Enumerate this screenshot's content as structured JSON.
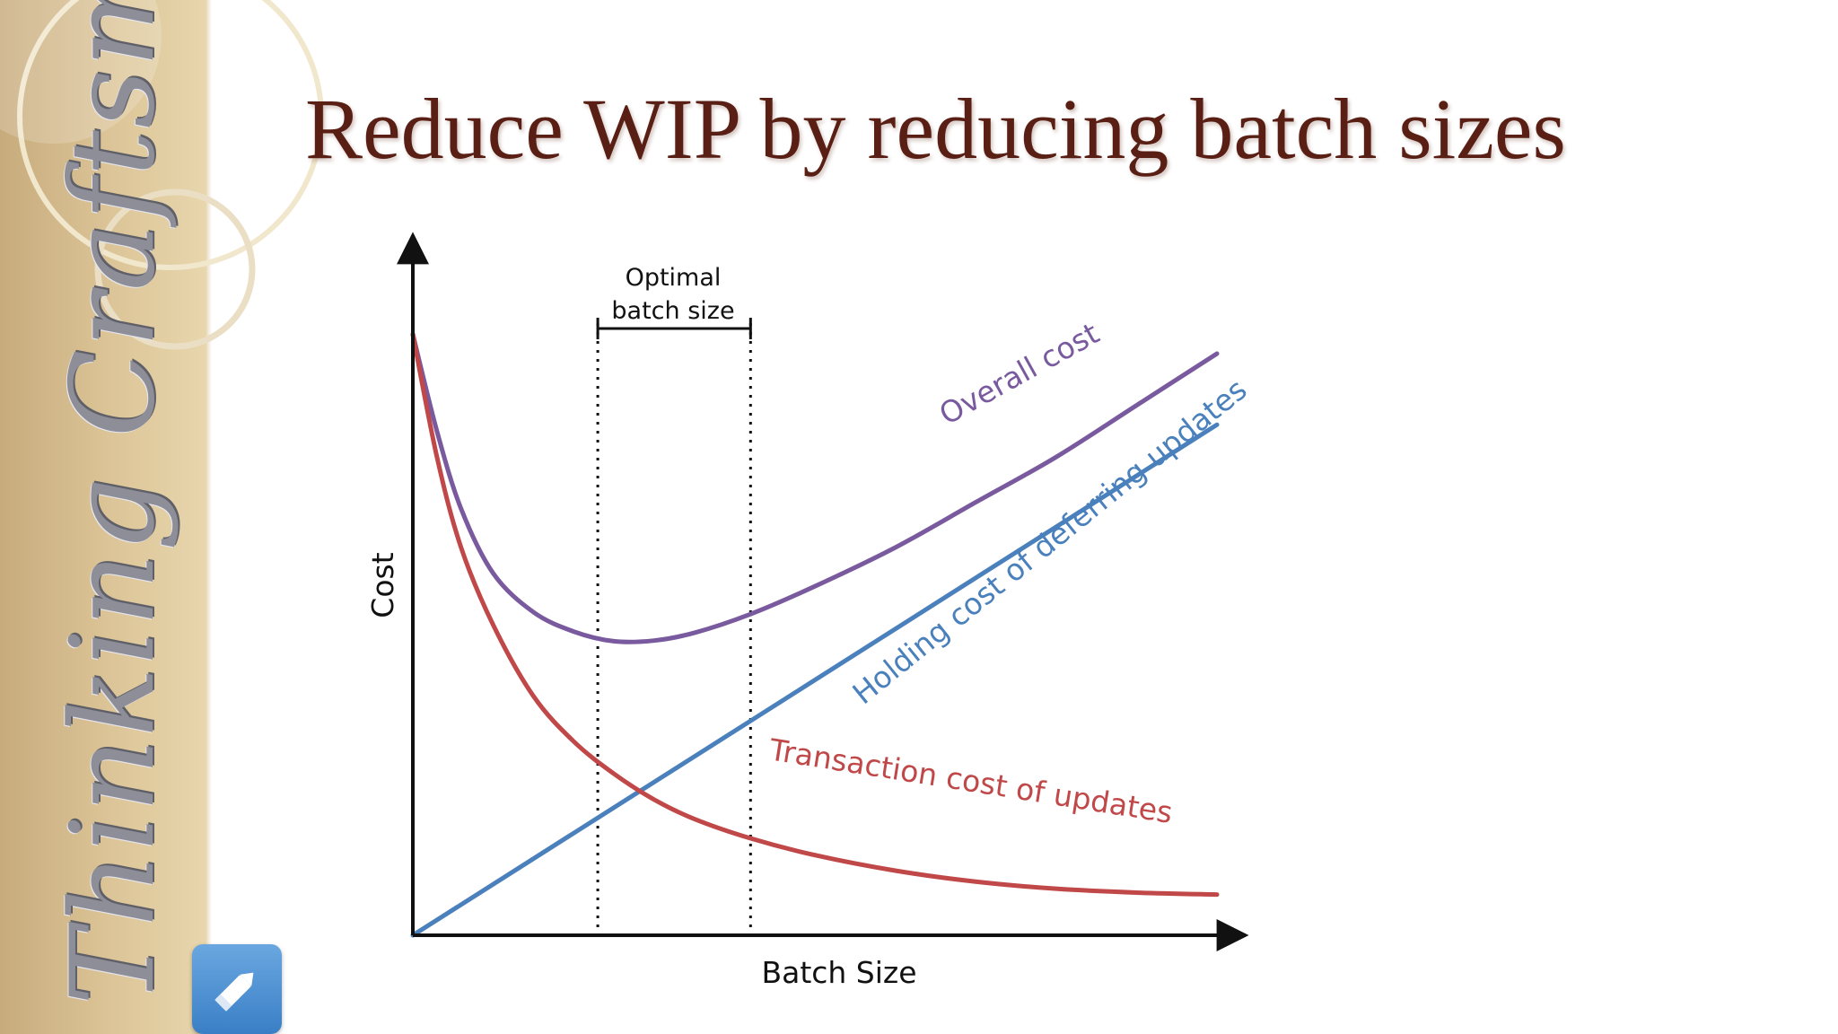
{
  "sidebar": {
    "brand_text": "Thinking Craftsman"
  },
  "slide": {
    "title": "Reduce WIP by reducing batch sizes"
  },
  "icons": {
    "edit": "pencil-icon"
  },
  "colors": {
    "title": "#5a1f14",
    "overall_cost": "#7a5a9e",
    "holding_cost": "#4a80bc",
    "transaction_cost": "#c04848",
    "axis": "#111111"
  },
  "chart_data": {
    "type": "line",
    "title": "",
    "xlabel": "Batch Size",
    "ylabel": "Cost",
    "xlim": [
      0,
      1
    ],
    "ylim": [
      0,
      1
    ],
    "grid": false,
    "legend": "none",
    "series": [
      {
        "name": "Overall cost",
        "x": [
          0,
          0.03,
          0.06,
          0.1,
          0.15,
          0.2,
          0.25,
          0.3,
          0.35,
          0.42,
          0.5,
          0.6,
          0.7,
          0.8,
          0.9,
          1.0
        ],
        "y": [
          0.93,
          0.78,
          0.66,
          0.56,
          0.5,
          0.47,
          0.455,
          0.456,
          0.468,
          0.497,
          0.54,
          0.6,
          0.67,
          0.74,
          0.82,
          0.9
        ]
      },
      {
        "name": "Holding cost of deferring updates",
        "x": [
          0,
          1.0
        ],
        "y": [
          0,
          0.79
        ]
      },
      {
        "name": "Transaction cost of updates",
        "x": [
          0,
          0.03,
          0.06,
          0.1,
          0.15,
          0.2,
          0.25,
          0.3,
          0.35,
          0.42,
          0.5,
          0.6,
          0.7,
          0.8,
          0.9,
          1.0
        ],
        "y": [
          0.93,
          0.74,
          0.6,
          0.48,
          0.37,
          0.3,
          0.25,
          0.21,
          0.18,
          0.15,
          0.124,
          0.1,
          0.083,
          0.072,
          0.066,
          0.063
        ]
      }
    ],
    "annotations": {
      "optimal_label_line1": "Optimal",
      "optimal_label_line2": "batch size",
      "optimal_range": [
        0.23,
        0.42
      ]
    }
  }
}
